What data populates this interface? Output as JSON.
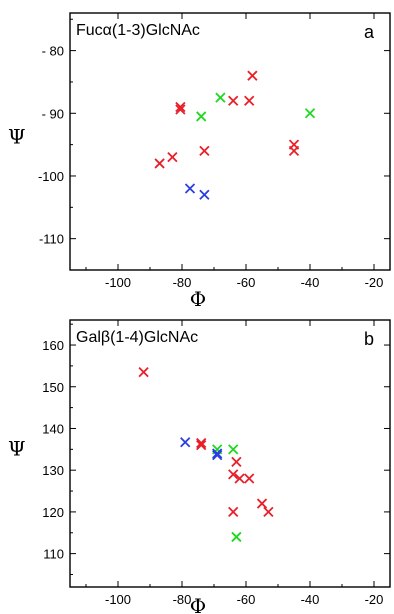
{
  "chart_data": [
    {
      "type": "scatter",
      "title": "Fucα(1-3)GlcNAc",
      "panel_label": "a",
      "xlabel": "Φ",
      "ylabel": "Ψ",
      "xlim": [
        -115,
        -15
      ],
      "ylim": [
        -115,
        -74
      ],
      "xticks": [
        -100,
        -80,
        -60,
        -40,
        -20
      ],
      "xticklabels": [
        "-100",
        "-80",
        "-60",
        "-40",
        "-20"
      ],
      "yticks": [
        -80,
        -90,
        -100,
        -110
      ],
      "yticklabels": [
        "- 80",
        "- 90",
        "-100",
        "-110"
      ],
      "colors": {
        "red": "#e8202a",
        "green": "#1fd81f",
        "blue": "#2a3fe0"
      },
      "series": [
        {
          "color": "red",
          "points": [
            [
              -80.5,
              -89
            ],
            [
              -80.5,
              -89.4
            ],
            [
              -58,
              -84
            ],
            [
              -64,
              -88
            ],
            [
              -59,
              -88
            ],
            [
              -45,
              -95
            ],
            [
              -45,
              -96
            ],
            [
              -73,
              -96
            ],
            [
              -83,
              -97
            ],
            [
              -87,
              -98
            ]
          ]
        },
        {
          "color": "green",
          "points": [
            [
              -68,
              -87.5
            ],
            [
              -40,
              -90
            ],
            [
              -74,
              -90.5
            ]
          ]
        },
        {
          "color": "blue",
          "points": [
            [
              -77.5,
              -102
            ],
            [
              -73,
              -103
            ]
          ]
        }
      ]
    },
    {
      "type": "scatter",
      "title": "Galβ(1-4)GlcNAc",
      "panel_label": "b",
      "xlabel": "Φ",
      "ylabel": "Ψ",
      "xlim": [
        -115,
        -15
      ],
      "ylim": [
        102,
        166
      ],
      "xticks": [
        -100,
        -80,
        -60,
        -40,
        -20
      ],
      "xticklabels": [
        "-100",
        "-80",
        "-60",
        "-40",
        "-20"
      ],
      "yticks": [
        110,
        120,
        130,
        140,
        150,
        160
      ],
      "yticklabels": [
        "110",
        "120",
        "130",
        "140",
        "150",
        "160"
      ],
      "colors": {
        "red": "#e8202a",
        "green": "#1fd81f",
        "blue": "#2a3fe0"
      },
      "series": [
        {
          "color": "red",
          "points": [
            [
              -92,
              153.5
            ],
            [
              -74,
              136.5
            ],
            [
              -74,
              136
            ],
            [
              -63,
              132
            ],
            [
              -64,
              129
            ],
            [
              -62,
              128
            ],
            [
              -59,
              128
            ],
            [
              -55,
              122
            ],
            [
              -53,
              120
            ],
            [
              -64,
              120
            ]
          ]
        },
        {
          "color": "green",
          "points": [
            [
              -69,
              135
            ],
            [
              -64,
              135
            ],
            [
              -63,
              114
            ]
          ]
        },
        {
          "color": "blue",
          "points": [
            [
              -79,
              136.7
            ],
            [
              -69,
              134
            ],
            [
              -69,
              133.6
            ]
          ]
        }
      ]
    }
  ]
}
